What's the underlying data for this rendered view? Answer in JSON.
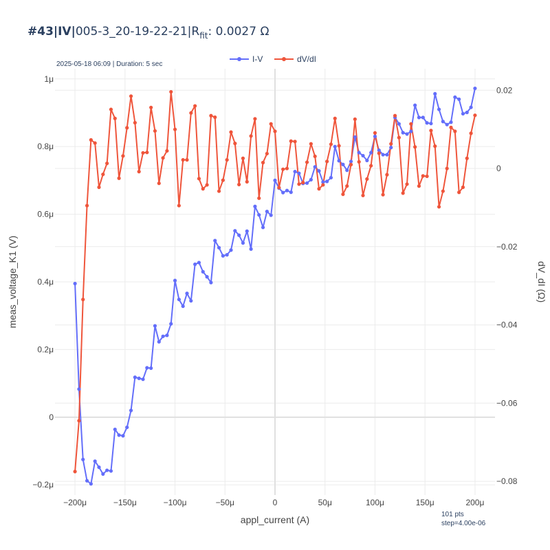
{
  "title": {
    "prefix": "#43|IV|",
    "run": "005-3_20-19-22-21|R",
    "sub": "fit",
    "suffix": ": 0.0027 Ω"
  },
  "subtitle": "2025-05-18 06:09 | Duration: 5 sec",
  "footnote": {
    "line1": "101 pts",
    "line2": "step=4.00e-06"
  },
  "colors": {
    "iv": "#636efa",
    "dvdi": "#ef553b",
    "grid": "#ebebeb",
    "text": "#2a3f5f",
    "axis_text": "#444444"
  },
  "chart_data": {
    "type": "line",
    "xlabel": "appl_current (A)",
    "ylabel": "meas_voltage_K1 (V)",
    "y2label": "dV_dI (Ω)",
    "legend_position": "top-center",
    "grid": true,
    "xlim": [
      -0.00022,
      0.00022
    ],
    "ylim": [
      -2.3e-07,
      1.03e-06
    ],
    "y2lim": [
      -0.0835,
      0.0255
    ],
    "xticks": [
      {
        "v": -0.0002,
        "label": "−200μ"
      },
      {
        "v": -0.00015,
        "label": "−150μ"
      },
      {
        "v": -0.0001,
        "label": "−100μ"
      },
      {
        "v": -5e-05,
        "label": "−50μ"
      },
      {
        "v": 0,
        "label": "0"
      },
      {
        "v": 5e-05,
        "label": "50μ"
      },
      {
        "v": 0.0001,
        "label": "100μ"
      },
      {
        "v": 0.00015,
        "label": "150μ"
      },
      {
        "v": 0.0002,
        "label": "200μ"
      }
    ],
    "yticks": [
      {
        "v": -2e-07,
        "label": "−0.2μ"
      },
      {
        "v": 0,
        "label": "0"
      },
      {
        "v": 2e-07,
        "label": "0.2μ"
      },
      {
        "v": 4e-07,
        "label": "0.4μ"
      },
      {
        "v": 6e-07,
        "label": "0.6μ"
      },
      {
        "v": 8e-07,
        "label": "0.8μ"
      },
      {
        "v": 1e-06,
        "label": "1μ"
      }
    ],
    "y2ticks": [
      {
        "v": -0.08,
        "label": "−0.08"
      },
      {
        "v": -0.06,
        "label": "−0.06"
      },
      {
        "v": -0.04,
        "label": "−0.04"
      },
      {
        "v": -0.02,
        "label": "−0.02"
      },
      {
        "v": 0,
        "label": "0"
      },
      {
        "v": 0.02,
        "label": "0.02"
      }
    ],
    "x_start": -0.0002,
    "x_step": 4e-06,
    "series": [
      {
        "name": "I-V",
        "axis": "left",
        "y": [
          3.95e-07,
          8.3e-08,
          -1.25e-07,
          -1.88e-07,
          -1.97e-07,
          -1.3e-07,
          -1.48e-07,
          -1.68e-07,
          -1.57e-07,
          -1.59e-07,
          -3.6e-08,
          -5.3e-08,
          -5.5e-08,
          -3e-08,
          2e-08,
          1.18e-07,
          1.15e-07,
          1.12e-07,
          1.46e-07,
          1.45e-07,
          2.7e-07,
          2.23e-07,
          2.39e-07,
          2.42e-07,
          2.76e-07,
          4.04e-07,
          3.48e-07,
          3.28e-07,
          3.66e-07,
          3.44e-07,
          4.52e-07,
          4.57e-07,
          4.3e-07,
          4.15e-07,
          3.98e-07,
          5.22e-07,
          5.01e-07,
          4.77e-07,
          4.8e-07,
          4.94e-07,
          5.51e-07,
          5.38e-07,
          5.15e-07,
          5.5e-07,
          4.97e-07,
          6.23e-07,
          5.98e-07,
          5.61e-07,
          6.08e-07,
          5.97e-07,
          7e-07,
          6.77e-07,
          6.64e-07,
          6.7e-07,
          6.65e-07,
          7.26e-07,
          7.21e-07,
          6.91e-07,
          6.92e-07,
          7.02e-07,
          7.4e-07,
          7.28e-07,
          6.95e-07,
          6.97e-07,
          7.08e-07,
          8e-07,
          7.58e-07,
          7.47e-07,
          7.3e-07,
          7.56e-07,
          8.28e-07,
          7.82e-07,
          7.73e-07,
          7.59e-07,
          7.82e-07,
          8.3e-07,
          7.89e-07,
          7.76e-07,
          7.76e-07,
          7.97e-07,
          8.86e-07,
          8.67e-07,
          8.41e-07,
          8.37e-07,
          8.45e-07,
          9.22e-07,
          8.86e-07,
          8.86e-07,
          8.7e-07,
          8.68e-07,
          9.56e-07,
          9.1e-07,
          8.74e-07,
          8.65e-07,
          8.72e-07,
          9.46e-07,
          9.4e-07,
          8.97e-07,
          9.01e-07,
          9.16e-07,
          9.72e-07
        ]
      },
      {
        "name": "dV/dI",
        "axis": "right",
        "y": [
          -0.0775,
          -0.0645,
          -0.0335,
          -0.0095,
          0.0073,
          0.0065,
          -0.0048,
          -0.0015,
          0.0013,
          0.0151,
          0.0128,
          -0.0025,
          0.0032,
          0.0104,
          0.0185,
          0.0117,
          -0.0008,
          0.004,
          0.0041,
          0.0156,
          0.0096,
          -0.0038,
          0.0027,
          0.0045,
          0.0196,
          0.01,
          -0.0095,
          0.0022,
          0.0022,
          0.0142,
          0.016,
          -0.0026,
          -0.0052,
          -0.0042,
          0.0135,
          0.0131,
          -0.0058,
          -0.003,
          0.0022,
          0.0093,
          0.0064,
          -0.0041,
          0.0026,
          -0.0034,
          0.0083,
          0.0127,
          -0.0076,
          0.0015,
          0.0038,
          0.0114,
          0.0095,
          -0.0049,
          -0.0002,
          0.0,
          0.007,
          0.0069,
          -0.004,
          -0.0036,
          0.0016,
          0.0063,
          0.0031,
          -0.0052,
          -0.0042,
          0.0018,
          0.0062,
          0.0128,
          0.0058,
          -0.0066,
          -0.0045,
          0.001,
          0.0126,
          0.0017,
          -0.0069,
          -0.0027,
          0.0007,
          0.0091,
          0.0039,
          -0.0067,
          -0.0016,
          0.0063,
          0.0135,
          0.0079,
          -0.0063,
          -0.004,
          0.0114,
          0.0055,
          -0.0045,
          -0.0019,
          -0.002,
          0.0097,
          0.0057,
          -0.0098,
          -0.0058,
          0.0,
          0.0105,
          0.0095,
          -0.0061,
          -0.0048,
          0.0026,
          0.009,
          0.0136
        ]
      }
    ]
  }
}
